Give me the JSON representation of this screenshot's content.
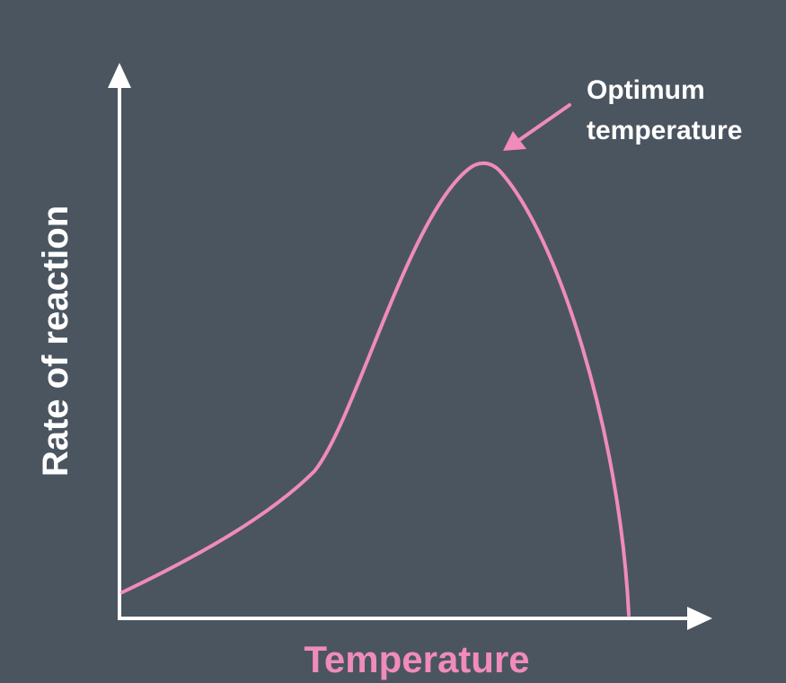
{
  "chart_data": {
    "type": "line",
    "title": "",
    "xlabel": "Temperature",
    "ylabel": "Rate of reaction",
    "grid": false,
    "legend": "none",
    "ticks": "none",
    "series": [
      {
        "values": "unlabeled curve: gradual rise, steep rise to a single maximum, then a sharp fall to zero"
      }
    ],
    "annotations": [
      {
        "text_lines": [
          "Optimum",
          "temperature"
        ],
        "points_to": "curve maximum"
      }
    ],
    "colors": {
      "background": "#4a5560",
      "axes": "#ffffff",
      "curve": "#f08bbb",
      "xlabel": "#f08bbb",
      "ylabel": "#ffffff"
    }
  }
}
